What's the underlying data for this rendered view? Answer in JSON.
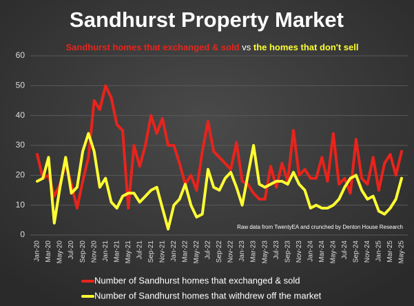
{
  "chart_data": {
    "type": "line",
    "title": "Sandhurst Property Market",
    "subtitle": [
      "Sandhurst homes that exchanged & sold",
      "vs",
      "the homes that don't sell"
    ],
    "annotation": "Raw data from TwentyEA and crunched by Denton House Research",
    "categories": [
      "Jan-20",
      null,
      "Mar-20",
      null,
      "May-20",
      null,
      "Jul-20",
      null,
      "Sep-20",
      null,
      "Nov-20",
      null,
      "Jan-21",
      null,
      "Mar-21",
      null,
      "May-21",
      null,
      "Jul-21",
      null,
      "Sep-21",
      null,
      "Nov-21",
      null,
      "Jan-22",
      null,
      "Mar-22",
      null,
      "May-22",
      null,
      "Jul-22",
      null,
      "Sep-22",
      null,
      "Nov-22",
      null,
      "Jan-23",
      null,
      "Mar-23",
      null,
      "May-23",
      null,
      "Jul-23",
      null,
      "Sep-23",
      null,
      "Nov-23",
      null,
      "Jan-24",
      null,
      "Mar-24",
      null,
      "May-24",
      null,
      "Jul-24",
      null,
      "Sep-24",
      null,
      "Nov-24",
      null,
      "Jan-25",
      null,
      "Mar-25",
      null,
      "May-25"
    ],
    "series": [
      {
        "name": "Number of Sandhurst homes that exchanged & sold",
        "color": "#e8241c",
        "values": [
          27,
          19,
          20,
          13,
          17,
          24,
          17,
          9,
          18,
          26,
          45,
          42,
          50,
          46,
          37,
          35,
          9,
          30,
          23,
          30,
          40,
          34,
          39,
          30,
          30,
          24,
          17,
          20,
          15,
          28,
          38,
          28,
          26,
          24,
          22,
          31,
          18,
          17,
          14,
          12,
          12,
          23,
          16,
          24,
          18,
          35,
          20,
          22,
          19,
          19,
          26,
          18,
          34,
          17,
          19,
          14,
          32,
          19,
          17,
          26,
          15,
          24,
          27,
          20,
          28
        ]
      },
      {
        "name": "Number of Sandhurst homes that withdrew off the market",
        "color": "#ffff33",
        "values": [
          18,
          19,
          26,
          4,
          16,
          26,
          14,
          16,
          28,
          34,
          28,
          16,
          19,
          11,
          9,
          13,
          14,
          14,
          11,
          13,
          15,
          16,
          9,
          2,
          10,
          12,
          17,
          10,
          6,
          7,
          22,
          16,
          15,
          19,
          21,
          16,
          10,
          20,
          30,
          17,
          16,
          17,
          18,
          18,
          17,
          21,
          17,
          15,
          9,
          10,
          9,
          9,
          10,
          12,
          16,
          19,
          20,
          15,
          12,
          13,
          8,
          7,
          9,
          12,
          19
        ]
      }
    ],
    "ylim": [
      0,
      60
    ],
    "yticks": [
      0,
      10,
      20,
      30,
      40,
      50,
      60
    ],
    "grid": true
  }
}
